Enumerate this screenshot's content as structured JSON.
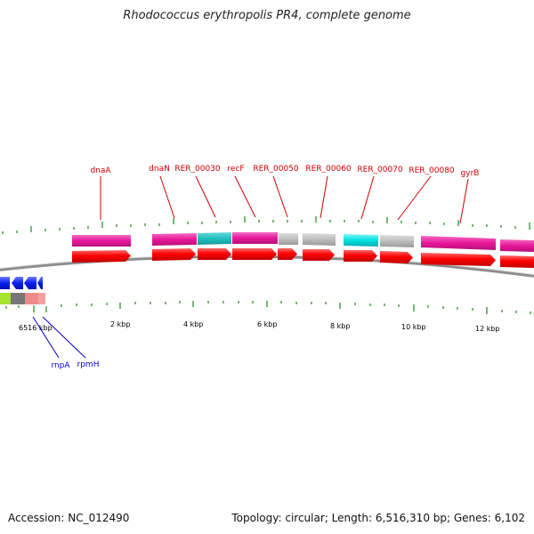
{
  "title": "Rhodococcus erythropolis PR4, complete genome",
  "footer": {
    "accession": "Accession: NC_012490",
    "summary": "Topology: circular; Length: 6,516,310 bp; Genes: 6,102"
  },
  "colors": {
    "gene_label": "#cc0000",
    "reverse_label": "#0000cc",
    "tick": "#1a8a1a",
    "backbone": "#8c8c8c",
    "cds_fill": "#ff0000",
    "pink_fill": "#e8189a",
    "cyan_fill": "#00e0e0",
    "teal_fill": "#20c0c0",
    "gray_fill": "#bdbdbd",
    "blue_fill": "#0a1ef0"
  },
  "scale_labels": [
    "6516 kbp",
    "2 kbp",
    "4 kbp",
    "6 kbp",
    "8 kbp",
    "10 kbp",
    "12 kbp"
  ],
  "forward_genes": [
    "dnaA",
    "dnaN",
    "RER_00030",
    "recF",
    "RER_00050",
    "RER_00060",
    "RER_00070",
    "RER_00080",
    "gyrB"
  ],
  "reverse_genes": [
    "rnpA",
    "rpmH"
  ]
}
